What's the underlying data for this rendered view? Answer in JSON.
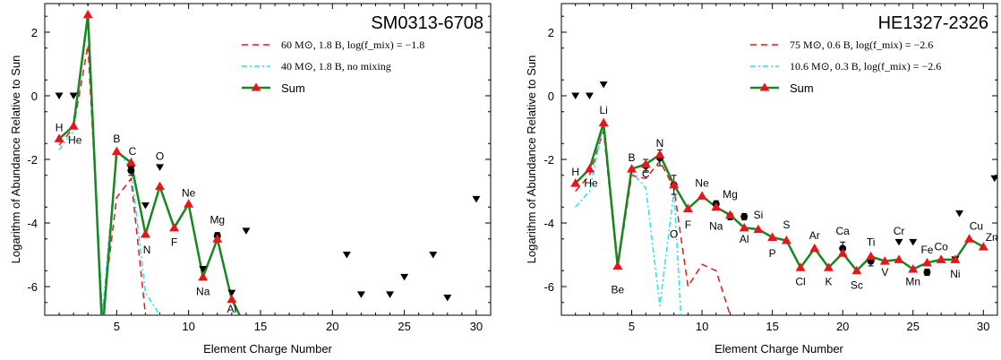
{
  "chart_data": [
    {
      "type": "scatter",
      "title": "SM0313-6708",
      "xlabel": "Element Charge Number",
      "ylabel": "Logarithm of Abundance Relative to Sun",
      "xlim": [
        0,
        31
      ],
      "ylim": [
        -6.9,
        2.9
      ],
      "xticks": [
        5,
        10,
        15,
        20,
        25,
        30
      ],
      "yticks": [
        -6,
        -4,
        -2,
        0,
        2
      ],
      "legend_position": "top-right",
      "legend": [
        {
          "label": "60 M⊙, 1.8 B, log(f_mix) = −1.8",
          "style": "dashed",
          "color": "#e8161a"
        },
        {
          "label": "40 M⊙, 1.8 B, no mixing",
          "style": "dashdot",
          "color": "#22e3f2"
        },
        {
          "label": "Sum",
          "style": "solid-triangle",
          "color": "#17871f"
        }
      ],
      "series": [
        {
          "name": "60 M⊙, 1.8 B, log(f_mix) = −1.8",
          "x": [
            1,
            2,
            3,
            4,
            5,
            6,
            7
          ],
          "y": [
            -1.55,
            -1.0,
            1.6,
            -6.9,
            -3.2,
            -2.6,
            -6.9
          ]
        },
        {
          "name": "40 M⊙, 1.8 B, no mixing",
          "x": [
            1,
            2,
            3,
            4,
            5,
            6,
            7,
            8
          ],
          "y": [
            -1.7,
            -1.1,
            2.4,
            -6.9,
            -1.7,
            -2.3,
            -6.2,
            -6.9
          ]
        },
        {
          "name": "Sum",
          "x": [
            1,
            2,
            3,
            4,
            5,
            6,
            7,
            8,
            9,
            10,
            11,
            12,
            13,
            14
          ],
          "y": [
            -1.35,
            -0.95,
            2.55,
            -7.5,
            -1.75,
            -2.1,
            -4.35,
            -2.85,
            -4.15,
            -3.4,
            -5.7,
            -4.5,
            -6.4,
            -7.3
          ]
        }
      ],
      "observed": [
        {
          "x": 6,
          "y": -2.35,
          "err": 0.15
        },
        {
          "x": 12,
          "y": -4.4,
          "err": 0.1
        }
      ],
      "upper_limits": [
        {
          "x": 1,
          "y": 0.0
        },
        {
          "x": 2,
          "y": 0.0
        },
        {
          "x": 3,
          "y": 2.95
        },
        {
          "x": 6,
          "y": -2.3
        },
        {
          "x": 7,
          "y": -3.45
        },
        {
          "x": 8,
          "y": -2.25
        },
        {
          "x": 11,
          "y": -5.45
        },
        {
          "x": 13,
          "y": -6.2
        },
        {
          "x": 14,
          "y": -4.25
        },
        {
          "x": 21,
          "y": -5.0
        },
        {
          "x": 22,
          "y": -6.25
        },
        {
          "x": 24,
          "y": -6.25
        },
        {
          "x": 25,
          "y": -5.7
        },
        {
          "x": 27,
          "y": -5.0
        },
        {
          "x": 28,
          "y": -6.35
        },
        {
          "x": 30,
          "y": -3.25
        }
      ],
      "element_labels": [
        {
          "text": "H",
          "x": 1,
          "y": -1.0
        },
        {
          "text": "He",
          "x": 2.1,
          "y": -1.4
        },
        {
          "text": "B",
          "x": 5,
          "y": -1.35
        },
        {
          "text": "C",
          "x": 6.1,
          "y": -1.75
        },
        {
          "text": "O",
          "x": 8,
          "y": -1.9
        },
        {
          "text": "N",
          "x": 7.1,
          "y": -4.85
        },
        {
          "text": "Ne",
          "x": 10,
          "y": -3.05
        },
        {
          "text": "F",
          "x": 9,
          "y": -4.6
        },
        {
          "text": "Mg",
          "x": 12,
          "y": -3.9
        },
        {
          "text": "Na",
          "x": 11,
          "y": -6.15
        },
        {
          "text": "Al",
          "x": 13,
          "y": -6.7
        }
      ]
    },
    {
      "type": "scatter",
      "title": "HE1327-2326",
      "xlabel": "Element Charge Number",
      "ylabel": "Logarithm of Abundance Relative to Sun",
      "xlim": [
        0,
        31
      ],
      "ylim": [
        -6.9,
        2.9
      ],
      "xticks": [
        5,
        10,
        15,
        20,
        25,
        30
      ],
      "yticks": [
        -6,
        -4,
        -2,
        0,
        2
      ],
      "legend_position": "top-right",
      "legend": [
        {
          "label": "75 M⊙, 0.6 B, log(f_mix) = −2.6",
          "style": "dashed",
          "color": "#e8161a"
        },
        {
          "label": "10.6 M⊙, 0.3 B, log(f_mix) = −2.6",
          "style": "dashdot",
          "color": "#22e3f2"
        },
        {
          "label": "Sum",
          "style": "solid-triangle",
          "color": "#17871f"
        }
      ],
      "series": [
        {
          "name": "75 M⊙, 0.6 B, log(f_mix) = −2.6",
          "x": [
            1,
            2,
            3,
            4,
            5,
            6,
            7,
            8,
            9,
            10,
            11,
            12
          ],
          "y": [
            -3.0,
            -2.5,
            -1.1,
            -5.45,
            -2.5,
            -2.6,
            -2.05,
            -2.9,
            -6.0,
            -5.3,
            -5.5,
            -6.9
          ]
        },
        {
          "name": "10.6 M⊙, 0.3 B, log(f_mix) = −2.6",
          "x": [
            1,
            2,
            3,
            4,
            5,
            6,
            7,
            8,
            8.5
          ],
          "y": [
            -3.5,
            -3.0,
            -0.85,
            -5.4,
            -2.4,
            -2.9,
            -6.6,
            -3.0,
            -6.9
          ]
        },
        {
          "name": "Sum",
          "x": [
            1,
            2,
            3,
            4,
            5,
            6,
            7,
            8,
            9,
            10,
            11,
            12,
            13,
            14,
            15,
            16,
            17,
            18,
            19,
            20,
            21,
            22,
            23,
            24,
            25,
            26,
            27,
            28,
            29,
            30
          ],
          "y": [
            -2.75,
            -2.3,
            -0.85,
            -5.35,
            -2.3,
            -2.15,
            -1.85,
            -2.8,
            -3.55,
            -3.15,
            -3.5,
            -3.75,
            -4.15,
            -4.2,
            -4.45,
            -4.55,
            -5.4,
            -4.8,
            -5.4,
            -4.95,
            -5.5,
            -5.05,
            -5.2,
            -5.15,
            -5.45,
            -5.25,
            -5.15,
            -5.15,
            -4.5,
            -4.75
          ]
        }
      ],
      "observed": [
        {
          "x": 6,
          "y": -2.2,
          "err": 0.2
        },
        {
          "x": 7,
          "y": -1.95,
          "err": 0.25
        },
        {
          "x": 8,
          "y": -2.8,
          "err": 0.3
        },
        {
          "x": 11,
          "y": -3.4,
          "err": 0.1
        },
        {
          "x": 12,
          "y": -3.8,
          "err": 0.1
        },
        {
          "x": 13,
          "y": -3.8,
          "err": 0.1
        },
        {
          "x": 20,
          "y": -4.8,
          "err": 0.2
        },
        {
          "x": 22,
          "y": -5.2,
          "err": 0.15
        },
        {
          "x": 26,
          "y": -5.55,
          "err": 0.1
        }
      ],
      "upper_limits": [
        {
          "x": 1,
          "y": 0.0
        },
        {
          "x": 2,
          "y": 0.0
        },
        {
          "x": 3,
          "y": 0.35
        },
        {
          "x": 24,
          "y": -4.6
        },
        {
          "x": 25,
          "y": -4.6
        },
        {
          "x": 28,
          "y": -5.15
        },
        {
          "x": 28.3,
          "y": -3.7
        },
        {
          "x": 30.8,
          "y": -2.6
        }
      ],
      "element_labels": [
        {
          "text": "Li",
          "x": 3,
          "y": -0.45
        },
        {
          "text": "H",
          "x": 1,
          "y": -2.4
        },
        {
          "text": "He",
          "x": 2.1,
          "y": -2.75
        },
        {
          "text": "Be",
          "x": 4,
          "y": -6.1
        },
        {
          "text": "B",
          "x": 5,
          "y": -1.95
        },
        {
          "text": "C",
          "x": 6,
          "y": -2.45
        },
        {
          "text": "N",
          "x": 7,
          "y": -1.5
        },
        {
          "text": "O",
          "x": 8,
          "y": -4.35
        },
        {
          "text": "F",
          "x": 9,
          "y": -4.05
        },
        {
          "text": "Ne",
          "x": 10,
          "y": -2.75
        },
        {
          "text": "Mg",
          "x": 12,
          "y": -3.1
        },
        {
          "text": "Na",
          "x": 11,
          "y": -4.1
        },
        {
          "text": "Si",
          "x": 14,
          "y": -3.75
        },
        {
          "text": "Al",
          "x": 13,
          "y": -4.5
        },
        {
          "text": "S",
          "x": 16,
          "y": -4.05
        },
        {
          "text": "P",
          "x": 15,
          "y": -4.95
        },
        {
          "text": "Ca",
          "x": 20,
          "y": -4.25
        },
        {
          "text": "Ar",
          "x": 18,
          "y": -4.4
        },
        {
          "text": "Ti",
          "x": 22,
          "y": -4.6
        },
        {
          "text": "Cl",
          "x": 17,
          "y": -5.85
        },
        {
          "text": "K",
          "x": 19,
          "y": -5.85
        },
        {
          "text": "Sc",
          "x": 21,
          "y": -5.95
        },
        {
          "text": "V",
          "x": 23,
          "y": -5.55
        },
        {
          "text": "Cr",
          "x": 24,
          "y": -4.25
        },
        {
          "text": "Mn",
          "x": 25,
          "y": -5.85
        },
        {
          "text": "Fe",
          "x": 26,
          "y": -4.85
        },
        {
          "text": "Co",
          "x": 27,
          "y": -4.75
        },
        {
          "text": "Ni",
          "x": 28,
          "y": -5.6
        },
        {
          "text": "Cu",
          "x": 29.5,
          "y": -4.1
        },
        {
          "text": "Zn",
          "x": 30.6,
          "y": -4.45
        }
      ]
    }
  ]
}
